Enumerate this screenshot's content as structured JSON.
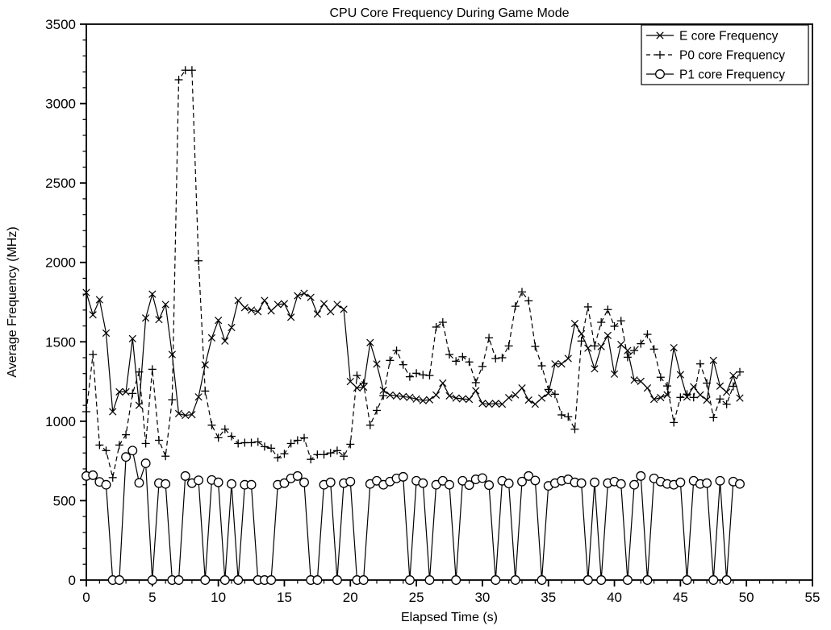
{
  "chart_data": {
    "type": "line",
    "title": "CPU Core Frequency During Game Mode",
    "xlabel": "Elapsed Time (s)",
    "ylabel": "Average Frequency (MHz)",
    "xlim": [
      0,
      55
    ],
    "ylim": [
      0,
      3500
    ],
    "x_major_tick": 5,
    "x_minor_tick": 1,
    "y_major_tick": 500,
    "y_minor_tick": 100,
    "x_tick_labels": [
      "0",
      "5",
      "10",
      "15",
      "20",
      "25",
      "30",
      "35",
      "40",
      "45",
      "50",
      "55"
    ],
    "y_tick_labels": [
      "0",
      "500",
      "1000",
      "1500",
      "2000",
      "2500",
      "3000",
      "3500"
    ],
    "grid": false,
    "legend_position": "upper right",
    "line_color": "#000000",
    "background_color": "#ffffff",
    "x": [
      0,
      0.5,
      1,
      1.5,
      2,
      2.5,
      3,
      3.5,
      4,
      4.5,
      5,
      5.5,
      6,
      6.5,
      7,
      7.5,
      8,
      8.5,
      9,
      9.5,
      10,
      10.5,
      11,
      11.5,
      12,
      12.5,
      13,
      13.5,
      14,
      14.5,
      15,
      15.5,
      16,
      16.5,
      17,
      17.5,
      18,
      18.5,
      19,
      19.5,
      20,
      20.5,
      21,
      21.5,
      22,
      22.5,
      23,
      23.5,
      24,
      24.5,
      25,
      25.5,
      26,
      26.5,
      27,
      27.5,
      28,
      28.5,
      29,
      29.5,
      30,
      30.5,
      31,
      31.5,
      32,
      32.5,
      33,
      33.5,
      34,
      34.5,
      35,
      35.5,
      36,
      36.5,
      37,
      37.5,
      38,
      38.5,
      39,
      39.5,
      40,
      40.5,
      41,
      41.5,
      42,
      42.5,
      43,
      43.5,
      44,
      44.5,
      45,
      45.5,
      46,
      46.5,
      47,
      47.5,
      48,
      48.5,
      49,
      49.5
    ],
    "series": [
      {
        "name": "E core Frequency",
        "marker": "x",
        "line_style": "solid",
        "color": "#000000",
        "values": [
          1810,
          1670,
          1765,
          1555,
          1060,
          1185,
          1185,
          1520,
          1100,
          1650,
          1800,
          1640,
          1735,
          1420,
          1048,
          1037,
          1042,
          1153,
          1355,
          1525,
          1635,
          1505,
          1590,
          1760,
          1715,
          1700,
          1690,
          1760,
          1695,
          1735,
          1740,
          1655,
          1790,
          1805,
          1780,
          1675,
          1740,
          1690,
          1735,
          1705,
          1250,
          1210,
          1215,
          1495,
          1360,
          1195,
          1165,
          1160,
          1155,
          1150,
          1140,
          1130,
          1135,
          1165,
          1240,
          1160,
          1146,
          1141,
          1138,
          1192,
          1112,
          1108,
          1112,
          1108,
          1148,
          1166,
          1209,
          1133,
          1108,
          1146,
          1175,
          1361,
          1361,
          1395,
          1615,
          1550,
          1460,
          1330,
          1470,
          1540,
          1297,
          1483,
          1445,
          1259,
          1251,
          1209,
          1138,
          1149,
          1166,
          1463,
          1293,
          1153,
          1217,
          1166,
          1133,
          1383,
          1221,
          1183,
          1288,
          1146
        ]
      },
      {
        "name": "P0 core Frequency",
        "marker": "+",
        "line_style": "dashed",
        "color": "#000000",
        "values": [
          1060,
          1420,
          850,
          815,
          645,
          850,
          915,
          1175,
          1310,
          860,
          1327,
          880,
          780,
          1135,
          3150,
          3210,
          3210,
          2010,
          1190,
          975,
          896,
          950,
          905,
          860,
          865,
          865,
          870,
          840,
          830,
          770,
          795,
          860,
          880,
          895,
          760,
          790,
          790,
          800,
          815,
          780,
          855,
          1288,
          1239,
          975,
          1068,
          1161,
          1383,
          1445,
          1356,
          1280,
          1302,
          1292,
          1288,
          1593,
          1623,
          1420,
          1378,
          1406,
          1373,
          1243,
          1345,
          1525,
          1395,
          1400,
          1474,
          1724,
          1814,
          1758,
          1471,
          1349,
          1200,
          1170,
          1040,
          1028,
          950,
          1505,
          1720,
          1474,
          1623,
          1703,
          1598,
          1632,
          1403,
          1445,
          1488,
          1547,
          1454,
          1277,
          1222,
          992,
          1150,
          1170,
          1150,
          1361,
          1240,
          1023,
          1140,
          1107,
          1220,
          1310
        ]
      },
      {
        "name": "P1 core Frequency",
        "marker": "circle",
        "line_style": "solid",
        "color": "#000000",
        "values": [
          655,
          660,
          618,
          600,
          0,
          0,
          775,
          815,
          612,
          735,
          0,
          610,
          605,
          0,
          0,
          655,
          610,
          628,
          0,
          630,
          615,
          0,
          605,
          0,
          600,
          600,
          0,
          0,
          0,
          600,
          610,
          640,
          655,
          615,
          0,
          0,
          600,
          615,
          0,
          610,
          620,
          0,
          0,
          605,
          625,
          600,
          620,
          640,
          650,
          0,
          625,
          610,
          0,
          600,
          625,
          600,
          0,
          625,
          598,
          634,
          642,
          598,
          0,
          625,
          608,
          0,
          620,
          655,
          627,
          0,
          593,
          610,
          625,
          634,
          615,
          610,
          0,
          615,
          0,
          610,
          620,
          605,
          0,
          600,
          655,
          0,
          640,
          620,
          605,
          600,
          615,
          0,
          625,
          605,
          610,
          0,
          625,
          0,
          620,
          605
        ]
      }
    ]
  }
}
